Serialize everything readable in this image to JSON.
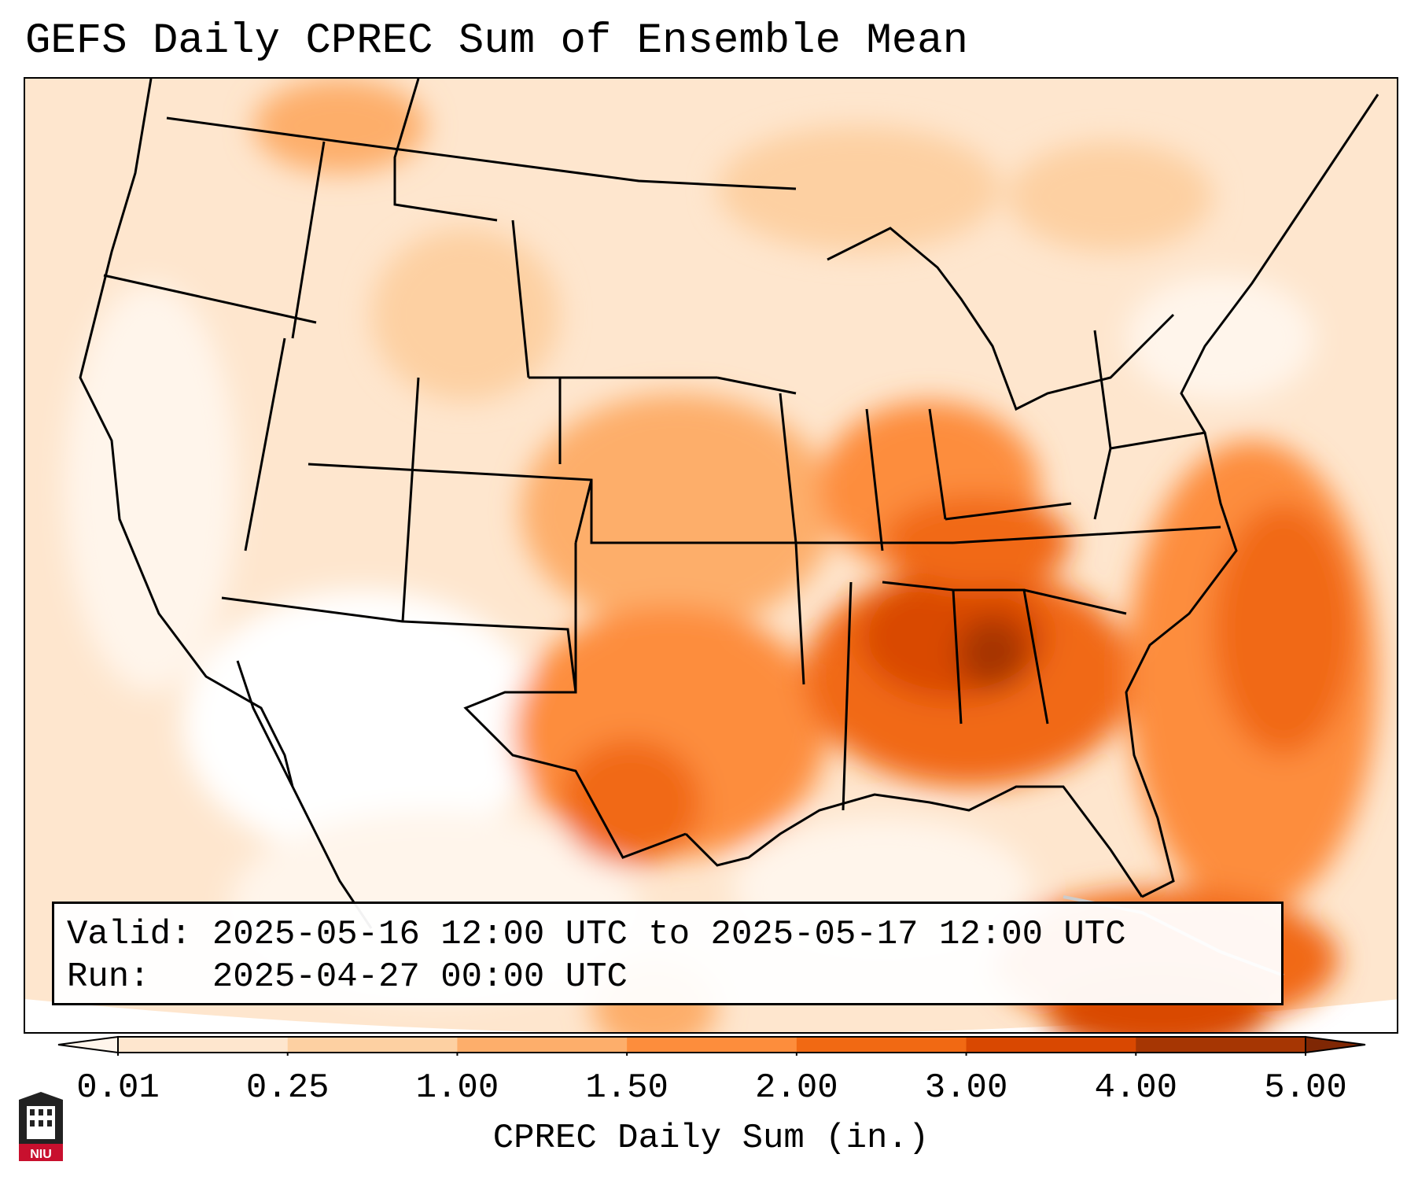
{
  "title": "GEFS Daily CPREC Sum of Ensemble Mean",
  "info": {
    "valid_line": "Valid: 2025-05-16 12:00 UTC to 2025-05-17 12:00 UTC",
    "run_line": "Run:   2025-04-27 00:00 UTC"
  },
  "colorbar": {
    "label": "CPREC Daily Sum (in.)",
    "ticks": [
      "0.01",
      "0.25",
      "1.00",
      "1.50",
      "2.00",
      "3.00",
      "4.00",
      "5.00"
    ],
    "colors": [
      "#fff5eb",
      "#fee6ce",
      "#fdd0a2",
      "#fdae6b",
      "#fd8d3c",
      "#f16913",
      "#d94801",
      "#a63603",
      "#7f2704"
    ]
  },
  "logo": {
    "text": "NIU"
  }
}
